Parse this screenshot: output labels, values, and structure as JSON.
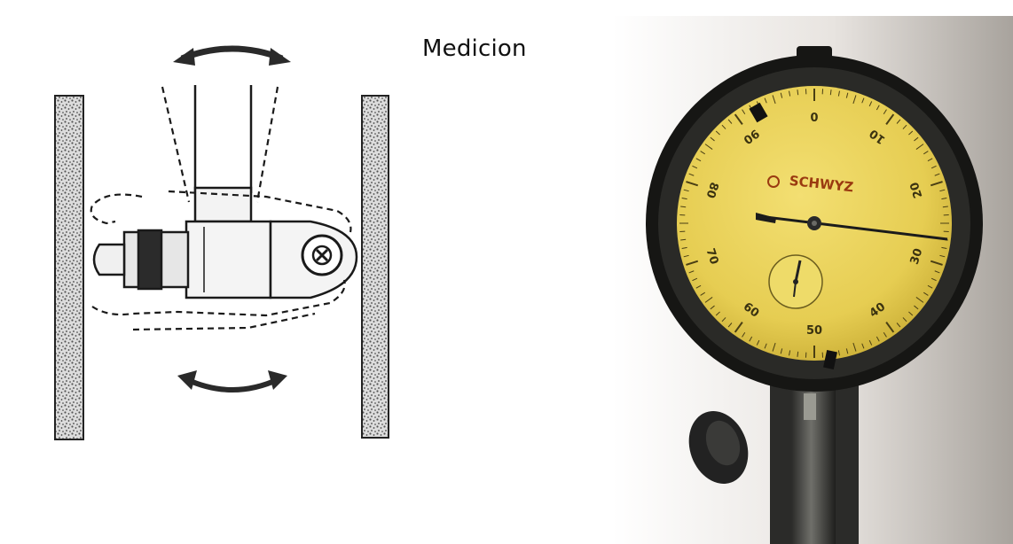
{
  "title": "Medicion",
  "gauge": {
    "brand": "SCHWYZ",
    "dial_numbers": [
      "0",
      "10",
      "20",
      "30",
      "40",
      "50",
      "60",
      "70",
      "80",
      "90"
    ]
  },
  "colors": {
    "dial_face": "#e9d25a",
    "bezel": "#1d1d1b",
    "wall_hatch": "#555555",
    "ink": "#1a1a1a"
  },
  "icons": [
    "rotate-arrow-icon"
  ]
}
